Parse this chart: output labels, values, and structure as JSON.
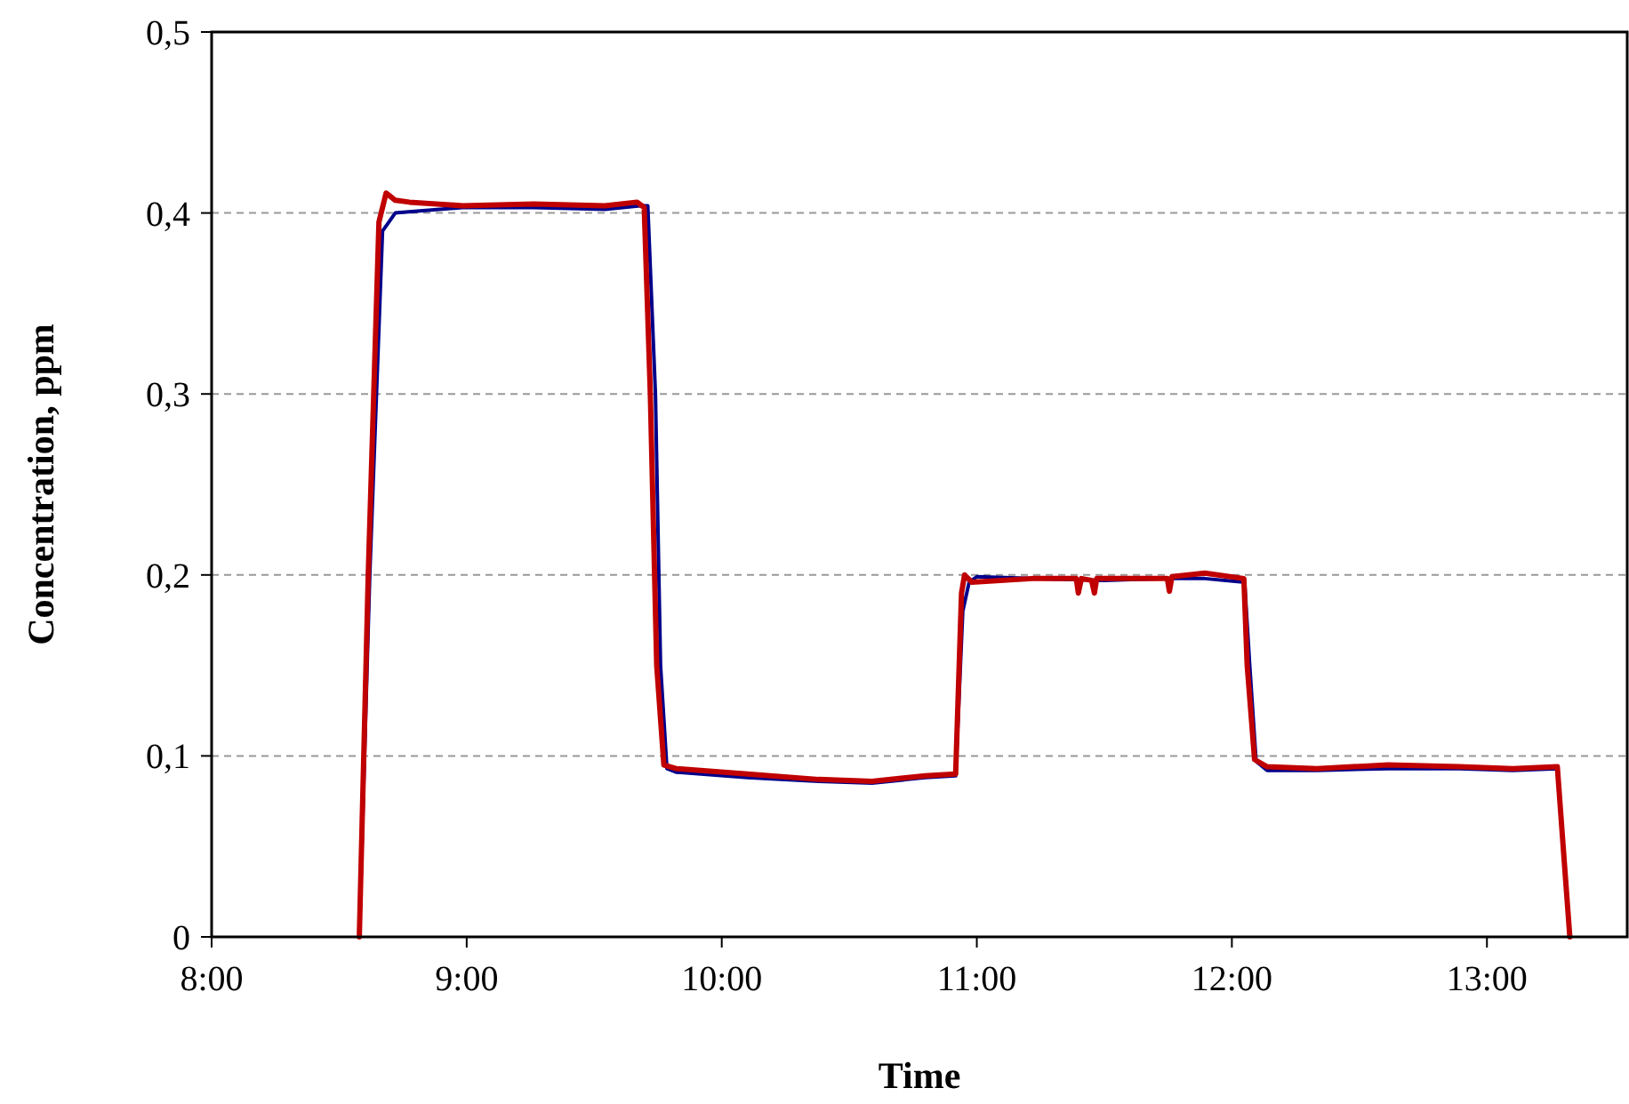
{
  "chart_data": {
    "type": "line",
    "xlabel": "Time",
    "ylabel": "Concentration, ppm",
    "xlim": [
      8,
      13.55
    ],
    "xticks": [
      {
        "value": 8,
        "label": "8:00"
      },
      {
        "value": 9,
        "label": "9:00"
      },
      {
        "value": 10,
        "label": "10:00"
      },
      {
        "value": 11,
        "label": "11:00"
      },
      {
        "value": 12,
        "label": "12:00"
      },
      {
        "value": 13,
        "label": "13:00"
      }
    ],
    "ylim": [
      0,
      0.5
    ],
    "yticks": [
      0,
      {
        "value": 0.1,
        "label": "0,1"
      },
      {
        "value": 0.2,
        "label": "0,2"
      },
      {
        "value": 0.3,
        "label": "0,3"
      },
      {
        "value": 0.4,
        "label": "0,4"
      },
      {
        "value": 0.5,
        "label": "0,5"
      }
    ],
    "grid": "y",
    "marker": "none",
    "line_style": "solid",
    "series": [
      {
        "color": "#00008b",
        "x": [
          8.579,
          8.62,
          8.67,
          8.72,
          8.984,
          9.263,
          9.542,
          9.68,
          9.71,
          9.74,
          9.76,
          9.785,
          9.821,
          10.1,
          10.38,
          10.589,
          10.798,
          10.917,
          10.945,
          10.97,
          11.0,
          11.217,
          11.5,
          11.747,
          11.894,
          12.05,
          12.07,
          12.095,
          12.138,
          12.333,
          12.613,
          12.892,
          13.101,
          13.276,
          13.304,
          13.325
        ],
        "values": [
          0,
          0.2,
          0.39,
          0.4,
          0.403,
          0.403,
          0.402,
          0.404,
          0.404,
          0.3,
          0.15,
          0.093,
          0.091,
          0.088,
          0.086,
          0.085,
          0.088,
          0.089,
          0.18,
          0.196,
          0.199,
          0.198,
          0.197,
          0.198,
          0.198,
          0.196,
          0.15,
          0.097,
          0.092,
          0.092,
          0.093,
          0.093,
          0.092,
          0.093,
          0.04,
          0
        ]
      },
      {
        "color": "#c00000",
        "x": [
          8.579,
          8.614,
          8.656,
          8.684,
          8.72,
          8.775,
          8.984,
          9.263,
          9.542,
          9.668,
          9.696,
          9.72,
          9.745,
          9.773,
          9.821,
          10.1,
          10.38,
          10.589,
          10.798,
          10.917,
          10.94,
          10.952,
          10.98,
          11.217,
          11.39,
          11.398,
          11.41,
          11.45,
          11.461,
          11.47,
          11.747,
          11.755,
          11.765,
          11.894,
          12.047,
          12.06,
          12.089,
          12.138,
          12.333,
          12.613,
          12.892,
          13.101,
          13.276,
          13.304,
          13.325
        ],
        "values": [
          0,
          0.2,
          0.395,
          0.411,
          0.407,
          0.406,
          0.404,
          0.405,
          0.404,
          0.406,
          0.403,
          0.3,
          0.15,
          0.095,
          0.093,
          0.09,
          0.087,
          0.086,
          0.089,
          0.09,
          0.19,
          0.2,
          0.196,
          0.198,
          0.198,
          0.19,
          0.198,
          0.197,
          0.19,
          0.198,
          0.198,
          0.191,
          0.199,
          0.201,
          0.198,
          0.15,
          0.098,
          0.094,
          0.093,
          0.095,
          0.094,
          0.093,
          0.094,
          0.04,
          0
        ]
      }
    ]
  }
}
